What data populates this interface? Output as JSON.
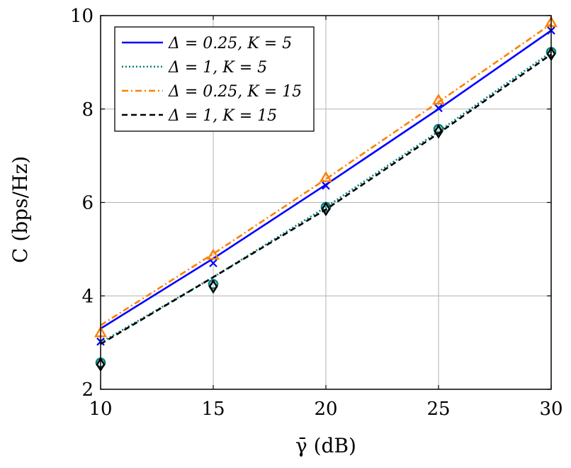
{
  "chart_data": {
    "type": "line",
    "xlabel": "γ̄ (dB)",
    "ylabel": "C (bps/Hz)",
    "xlim": [
      10,
      30
    ],
    "ylim": [
      2,
      10
    ],
    "xticks": [
      "10",
      "15",
      "20",
      "25",
      "30"
    ],
    "yticks": [
      "2",
      "4",
      "6",
      "8",
      "10"
    ],
    "grid": true,
    "legend_position": "top-left",
    "series": [
      {
        "name": "Δ = 0.25, K = 5",
        "color": "#0000ff",
        "line_style": "solid",
        "marker": "x-mark",
        "line_x": [
          10,
          15,
          20,
          25,
          30
        ],
        "line_y": [
          3.3,
          4.8,
          6.38,
          8.0,
          9.68
        ],
        "marker_x": [
          10,
          15,
          20,
          25,
          30
        ],
        "marker_y": [
          3.02,
          4.7,
          6.36,
          8.02,
          9.68
        ]
      },
      {
        "name": "Δ = 1, K = 5",
        "color": "#008080",
        "line_style": "dotted",
        "marker": "circle",
        "line_x": [
          10,
          15,
          20,
          25,
          30
        ],
        "line_y": [
          3.0,
          4.4,
          5.9,
          7.52,
          9.22
        ],
        "marker_x": [
          10,
          15,
          20,
          25,
          30
        ],
        "marker_y": [
          2.57,
          4.25,
          5.9,
          7.57,
          9.22
        ]
      },
      {
        "name": "Δ = 0.25, K = 15",
        "color": "#ff8000",
        "line_style": "dashdot",
        "marker": "triangle",
        "line_x": [
          10,
          15,
          20,
          25,
          30
        ],
        "line_y": [
          3.37,
          4.9,
          6.5,
          8.15,
          9.82
        ],
        "marker_x": [
          10,
          15,
          20,
          25,
          30
        ],
        "marker_y": [
          3.21,
          4.87,
          6.53,
          8.19,
          9.85
        ]
      },
      {
        "name": "Δ = 1, K = 15",
        "color": "#000000",
        "line_style": "dashed",
        "marker": "diamond",
        "line_x": [
          10,
          15,
          20,
          25,
          30
        ],
        "line_y": [
          2.97,
          4.4,
          5.85,
          7.48,
          9.17
        ],
        "marker_x": [
          10,
          15,
          20,
          25,
          30
        ],
        "marker_y": [
          2.53,
          4.2,
          5.86,
          7.52,
          9.18
        ]
      }
    ]
  }
}
